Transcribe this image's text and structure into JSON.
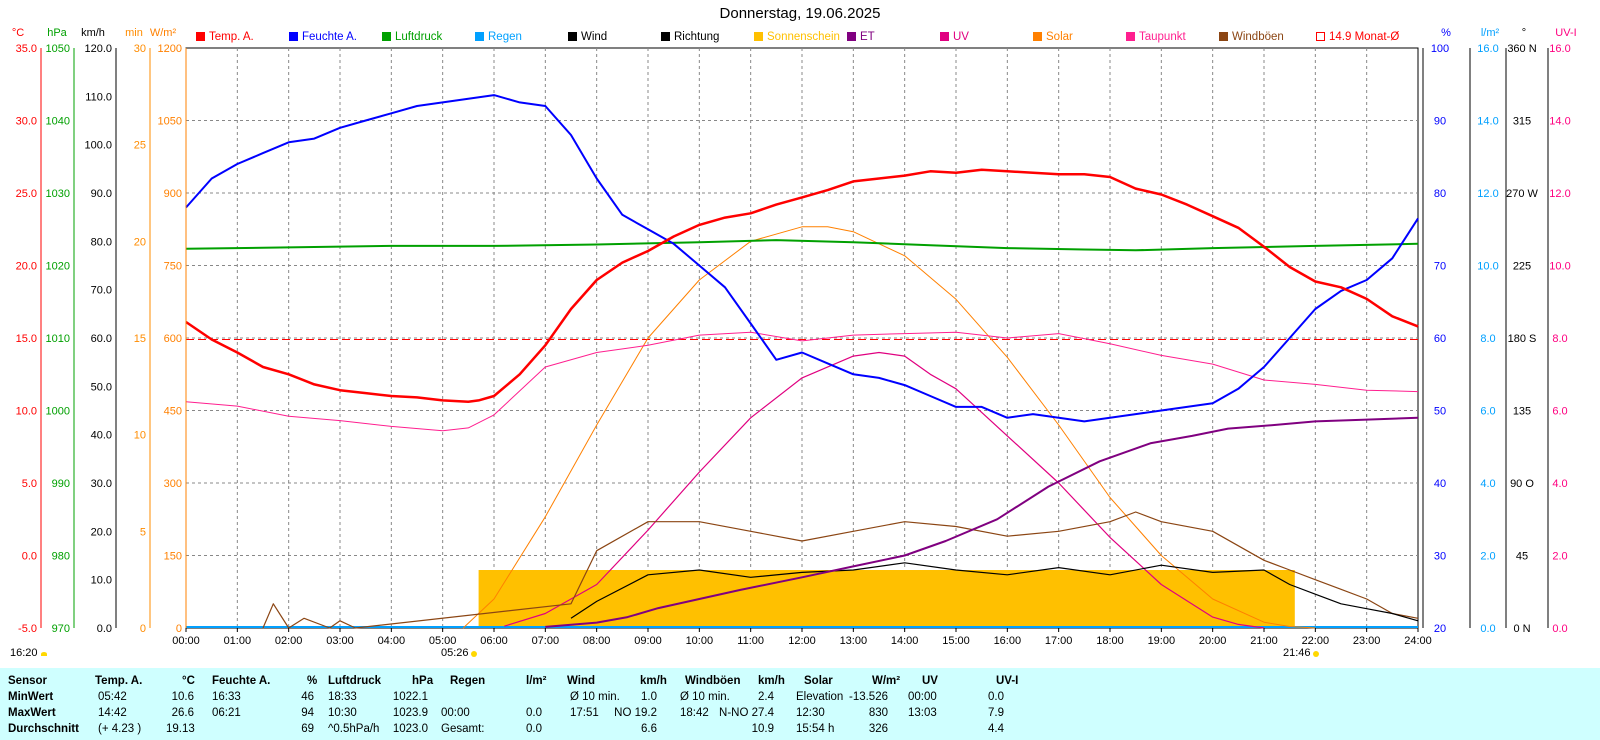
{
  "title": "Donnerstag, 19.06.2025",
  "colors": {
    "temp": "#ff0000",
    "humidity": "#0000ff",
    "pressure": "#00a000",
    "rain": "#00a0ff",
    "wind": "#000000",
    "direction": "#000000",
    "sunshine": "#ffc000",
    "et": "#800080",
    "uv": "#e00080",
    "solar": "#ff8000",
    "dewpoint": "#ff1f8f",
    "gust": "#8b4513",
    "monthly": "#ff0000",
    "stats_bg": "#cfffff"
  },
  "legend": [
    {
      "key": "temp",
      "label": "Temp. A.",
      "color": "#ff0000",
      "outline": false
    },
    {
      "key": "humidity",
      "label": "Feuchte A.",
      "color": "#0000ff",
      "outline": false
    },
    {
      "key": "pressure",
      "label": "Luftdruck",
      "color": "#00a000",
      "outline": false
    },
    {
      "key": "rain",
      "label": "Regen",
      "color": "#00a0ff",
      "outline": false
    },
    {
      "key": "wind",
      "label": "Wind",
      "color": "#000000",
      "outline": false
    },
    {
      "key": "direction",
      "label": "Richtung",
      "color": "#000000",
      "outline": false
    },
    {
      "key": "sunshine",
      "label": "Sonnenschein",
      "color": "#ffc000",
      "outline": false
    },
    {
      "key": "et",
      "label": "ET",
      "color": "#800080",
      "outline": false
    },
    {
      "key": "uv",
      "label": "UV",
      "color": "#e00080",
      "outline": false
    },
    {
      "key": "solar",
      "label": "Solar",
      "color": "#ff8000",
      "outline": false
    },
    {
      "key": "dewpoint",
      "label": "Taupunkt",
      "color": "#ff1f8f",
      "outline": false
    },
    {
      "key": "gust",
      "label": "Windböen",
      "color": "#8b4513",
      "outline": false
    },
    {
      "key": "monthly",
      "label": "14.9 Monat-Ø",
      "color": "#ff0000",
      "outline": true
    }
  ],
  "axes_headers": {
    "temp": "°C",
    "pressure": "hPa",
    "wind": "km/h",
    "sunshine": "min",
    "solar": "W/m²",
    "humidity": "%",
    "rain": "l/m²",
    "direction": "°",
    "uv": "UV-I"
  },
  "axes_ticks": {
    "temp": [
      "35.0",
      "30.0",
      "25.0",
      "20.0",
      "15.0",
      "10.0",
      "5.0",
      "0.0",
      "-5.0"
    ],
    "pressure": [
      "1050",
      "1040",
      "1030",
      "1020",
      "1010",
      "1000",
      "990",
      "980",
      "970"
    ],
    "wind": [
      "120.0",
      "110.0",
      "100.0",
      "90.0",
      "80.0",
      "70.0",
      "60.0",
      "50.0",
      "40.0",
      "30.0",
      "20.0",
      "10.0",
      "0.0"
    ],
    "sunshine": [
      "30",
      "25",
      "20",
      "15",
      "10",
      "5",
      "0"
    ],
    "solar": [
      "1200",
      "1050",
      "900",
      "750",
      "600",
      "450",
      "300",
      "150",
      "0"
    ],
    "humidity": [
      "100",
      "90",
      "80",
      "70",
      "60",
      "50",
      "40",
      "30",
      "20"
    ],
    "rain": [
      "16.0",
      "14.0",
      "12.0",
      "10.0",
      "8.0",
      "6.0",
      "4.0",
      "2.0",
      "0.0"
    ],
    "direction": [
      "360 N",
      "315",
      "270 W",
      "225",
      "180 S",
      "135",
      "90 O",
      "45",
      "0 N"
    ],
    "uv": [
      "16.0",
      "14.0",
      "12.0",
      "10.0",
      "8.0",
      "6.0",
      "4.0",
      "2.0",
      "0.0"
    ]
  },
  "x_ticks": [
    "00:00",
    "01:00",
    "02:00",
    "03:00",
    "04:00",
    "05:00",
    "06:00",
    "07:00",
    "08:00",
    "09:00",
    "10:00",
    "11:00",
    "12:00",
    "13:00",
    "14:00",
    "15:00",
    "16:00",
    "17:00",
    "18:00",
    "19:00",
    "20:00",
    "21:00",
    "22:00",
    "23:00",
    "24:00"
  ],
  "sunrise": "05:26",
  "sunset": "21:46",
  "timestamp": "16:20",
  "chart_data": {
    "type": "line",
    "title": "Donnerstag, 19.06.2025",
    "x_unit": "hour",
    "xlim": [
      0,
      24
    ],
    "series": [
      {
        "name": "Temp. A.",
        "key": "temp",
        "unit": "°C",
        "ylim": [
          -5,
          35
        ],
        "x": [
          0,
          0.5,
          1,
          1.5,
          2,
          2.5,
          3,
          3.5,
          4,
          4.5,
          5,
          5.5,
          5.7,
          6,
          6.5,
          7,
          7.5,
          8,
          8.5,
          9,
          9.5,
          10,
          10.5,
          11,
          11.5,
          12,
          12.5,
          13,
          13.5,
          14,
          14.5,
          15,
          15.5,
          16,
          16.5,
          17,
          17.5,
          18,
          18.5,
          19,
          19.5,
          20,
          20.5,
          21,
          21.5,
          22,
          22.5,
          23,
          23.5,
          24
        ],
        "y": [
          16.1,
          14.9,
          14.0,
          13.0,
          12.5,
          11.8,
          11.4,
          11.2,
          11.0,
          10.9,
          10.7,
          10.6,
          10.7,
          11.0,
          12.5,
          14.5,
          17.0,
          19.0,
          20.2,
          21.0,
          22.0,
          22.8,
          23.3,
          23.6,
          24.2,
          24.7,
          25.2,
          25.8,
          26.0,
          26.2,
          26.5,
          26.4,
          26.6,
          26.5,
          26.4,
          26.3,
          26.3,
          26.1,
          25.3,
          24.9,
          24.2,
          23.4,
          22.6,
          21.3,
          19.9,
          18.9,
          18.5,
          17.7,
          16.5,
          15.8
        ]
      },
      {
        "name": "Feuchte A.",
        "key": "humidity",
        "unit": "%",
        "ylim": [
          20,
          100
        ],
        "x": [
          0,
          0.5,
          1,
          1.5,
          2,
          2.5,
          3,
          3.5,
          4,
          4.5,
          5,
          5.5,
          6,
          6.5,
          7,
          7.5,
          8,
          8.5,
          9,
          9.5,
          10,
          10.5,
          11,
          11.5,
          12,
          12.5,
          13,
          13.5,
          14,
          14.5,
          15,
          15.5,
          16,
          16.5,
          17,
          17.5,
          18,
          18.5,
          19,
          19.5,
          20,
          20.5,
          21,
          21.5,
          22,
          22.5,
          23,
          23.5,
          24
        ],
        "y": [
          78.0,
          82.0,
          84.0,
          85.5,
          87.0,
          87.5,
          89.0,
          90.0,
          91.0,
          92.0,
          92.5,
          93.0,
          93.5,
          92.5,
          92.0,
          88.0,
          82.0,
          77.0,
          75.0,
          73.0,
          70.0,
          67.0,
          62.0,
          57.0,
          58.0,
          56.5,
          55.0,
          54.5,
          53.5,
          52.0,
          50.5,
          50.5,
          49.0,
          49.5,
          49.0,
          48.5,
          49.0,
          49.5,
          50.0,
          50.5,
          51.0,
          53.0,
          56.0,
          60.0,
          64.0,
          66.5,
          68.0,
          71.0,
          76.5
        ]
      },
      {
        "name": "Luftdruck",
        "key": "pressure",
        "unit": "hPa",
        "ylim": [
          970,
          1050
        ],
        "x": [
          0,
          2,
          4,
          6,
          8,
          10,
          11.5,
          13,
          14.5,
          16,
          17.5,
          18.5,
          20,
          22,
          24
        ],
        "y": [
          1022.3,
          1022.5,
          1022.7,
          1022.7,
          1022.9,
          1023.2,
          1023.5,
          1023.2,
          1022.8,
          1022.4,
          1022.2,
          1022.1,
          1022.4,
          1022.7,
          1023.0
        ]
      },
      {
        "name": "Solar",
        "key": "solar",
        "unit": "W/m²",
        "ylim": [
          0,
          1200
        ],
        "x": [
          5.4,
          6,
          7,
          8,
          9,
          10,
          11,
          12,
          12.5,
          13,
          14,
          15,
          16,
          17,
          18,
          19,
          20,
          21,
          21.5,
          22
        ],
        "y": [
          0,
          60,
          230,
          420,
          600,
          720,
          800,
          830,
          830,
          820,
          770,
          680,
          560,
          420,
          270,
          150,
          60,
          12,
          3,
          0
        ]
      },
      {
        "name": "Taupunkt",
        "key": "dewpoint",
        "unit": "°C",
        "ylim": [
          -5,
          35
        ],
        "x": [
          0,
          1,
          2,
          3,
          4,
          5,
          5.5,
          6,
          7,
          8,
          9,
          10,
          11,
          12,
          13,
          14,
          15,
          16,
          17,
          18,
          19,
          20,
          21,
          22,
          23,
          24
        ],
        "y": [
          10.6,
          10.3,
          9.6,
          9.3,
          8.9,
          8.6,
          8.8,
          9.7,
          13.0,
          14.0,
          14.5,
          15.2,
          15.4,
          14.8,
          15.2,
          15.3,
          15.4,
          15.0,
          15.3,
          14.6,
          13.8,
          13.2,
          12.1,
          11.8,
          11.4,
          11.3
        ]
      },
      {
        "name": "UV",
        "key": "uv",
        "unit": "UV-I",
        "ylim": [
          0,
          16
        ],
        "x": [
          6.2,
          7,
          8,
          9,
          10,
          11,
          12,
          13,
          13.5,
          14,
          14.5,
          15,
          16,
          17,
          18,
          19,
          20,
          20.5,
          21
        ],
        "y": [
          0.05,
          0.4,
          1.2,
          2.7,
          4.3,
          5.8,
          6.9,
          7.5,
          7.6,
          7.5,
          7.0,
          6.6,
          5.3,
          4.0,
          2.5,
          1.2,
          0.3,
          0.1,
          0.0
        ]
      },
      {
        "name": "ET",
        "key": "et",
        "unit": "l/m²",
        "ylim": [
          0,
          16
        ],
        "x": [
          7,
          8,
          8.6,
          9.2,
          10,
          10.8,
          12,
          13,
          14,
          14.8,
          15.8,
          16.8,
          17.8,
          18.8,
          19.6,
          20.3,
          21.2,
          22,
          23,
          24
        ],
        "y": [
          0.03,
          0.15,
          0.3,
          0.55,
          0.8,
          1.05,
          1.4,
          1.7,
          2.0,
          2.4,
          3.0,
          3.9,
          4.6,
          5.1,
          5.3,
          5.5,
          5.6,
          5.7,
          5.75,
          5.8
        ]
      },
      {
        "name": "Wind",
        "key": "wind",
        "unit": "km/h",
        "ylim": [
          0,
          120
        ],
        "x": [
          7.5,
          8,
          9,
          10,
          11,
          12,
          13,
          14,
          15,
          16,
          17,
          18,
          19,
          20,
          21,
          21.5,
          22,
          22.5,
          23,
          23.5,
          24
        ],
        "y": [
          2.0,
          5.5,
          11.0,
          12.0,
          10.5,
          11.5,
          12.0,
          13.5,
          12.0,
          11.0,
          12.5,
          11.0,
          13.0,
          11.5,
          12.0,
          9.0,
          7.0,
          5.0,
          4.0,
          3.0,
          1.5
        ]
      },
      {
        "name": "Windböen",
        "key": "gust",
        "unit": "km/h",
        "ylim": [
          0,
          120
        ],
        "x": [
          1.5,
          1.7,
          2,
          2.3,
          2.8,
          3,
          3.3,
          7.5,
          8,
          9,
          10,
          11,
          12,
          13,
          14,
          15,
          16,
          17,
          18,
          18.5,
          19,
          20,
          21,
          21.5,
          22,
          22.5,
          23,
          23.5,
          24
        ],
        "y": [
          0,
          5,
          0,
          2,
          0,
          1.5,
          0,
          5,
          16,
          22,
          22,
          20,
          18,
          20,
          22,
          21,
          19,
          20,
          22,
          24,
          22,
          20,
          14,
          12,
          10,
          8,
          6,
          3,
          2
        ]
      },
      {
        "name": "Sonnenschein",
        "key": "sunshine",
        "unit": "min",
        "ylim": [
          0,
          30
        ],
        "bars": [
          {
            "from": 5.7,
            "to": 21.6,
            "value": 3.0
          }
        ]
      },
      {
        "name": "14.9 Monat-Ø",
        "key": "monthly",
        "unit": "°C",
        "constant": 14.9
      }
    ]
  },
  "stats": {
    "headers": {
      "sensor": "Sensor",
      "temp": "Temp. A.",
      "temp_u": "°C",
      "hum": "Feuchte A.",
      "hum_u": "%",
      "press": "Luftdruck",
      "press_u": "hPa",
      "rain": "Regen",
      "rain_u": "l/m²",
      "wind": "Wind",
      "wind_u": "km/h",
      "gust": "Windböen",
      "gust_u": "km/h",
      "solar": "Solar",
      "solar_u": "W/m²",
      "uv": "UV",
      "uv_u": "UV-I"
    },
    "rows": [
      {
        "label": "MinWert",
        "temp_t": "05:42",
        "temp_v": "10.6",
        "hum_t": "16:33",
        "hum_v": "46",
        "press_t": "18:33",
        "press_v": "1022.1",
        "rain_t": "",
        "rain_v": "",
        "wind_l": "Ø 10 min.",
        "wind_v": "1.0",
        "gust_l": "Ø 10 min.",
        "gust_v": "2.4",
        "solar_l": "Elevation",
        "solar_v": "-13.526",
        "uv_t": "00:00",
        "uv_v": "0.0"
      },
      {
        "label": "MaxWert",
        "temp_t": "14:42",
        "temp_v": "26.6",
        "hum_t": "06:21",
        "hum_v": "94",
        "press_t": "10:30",
        "press_v": "1023.9",
        "rain_t": "00:00",
        "rain_v": "0.0",
        "wind_l": "17:51",
        "wind_v": "NO 19.2",
        "gust_l": "18:42",
        "gust_v": "N-NO 27.4",
        "solar_l": "12:30",
        "solar_v": "830",
        "uv_t": "13:03",
        "uv_v": "7.9"
      },
      {
        "label": "Durchschnitt",
        "temp_t": "(+ 4.23 )",
        "temp_v": "19.13",
        "hum_t": "",
        "hum_v": "69",
        "press_t": "^0.5hPa/h",
        "press_v": "1023.0",
        "rain_t": "Gesamt:",
        "rain_v": "0.0",
        "wind_l": "",
        "wind_v": "6.6",
        "gust_l": "",
        "gust_v": "10.9",
        "solar_l": "15:54 h",
        "solar_v": "326",
        "uv_t": "",
        "uv_v": "4.4"
      }
    ]
  }
}
